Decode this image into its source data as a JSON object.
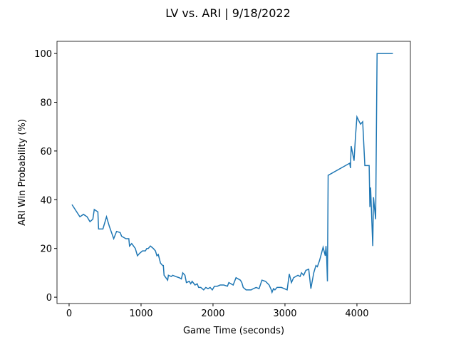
{
  "chart_data": {
    "type": "line",
    "title": "LV vs. ARI | 9/18/2022",
    "xlabel": "Game Time (seconds)",
    "ylabel": "ARI Win Probability (%)",
    "color": "#1f77b4",
    "x": [
      40,
      150,
      200,
      250,
      290,
      330,
      350,
      400,
      410,
      470,
      520,
      560,
      620,
      660,
      710,
      730,
      790,
      830,
      840,
      870,
      920,
      950,
      980,
      1020,
      1060,
      1080,
      1100,
      1130,
      1170,
      1200,
      1220,
      1240,
      1270,
      1300,
      1310,
      1320,
      1370,
      1380,
      1420,
      1440,
      1480,
      1530,
      1560,
      1580,
      1610,
      1630,
      1670,
      1690,
      1710,
      1750,
      1780,
      1800,
      1830,
      1870,
      1900,
      1930,
      1960,
      1990,
      2020,
      2060,
      2100,
      2150,
      2200,
      2220,
      2280,
      2320,
      2380,
      2400,
      2420,
      2460,
      2530,
      2560,
      2600,
      2640,
      2680,
      2730,
      2780,
      2810,
      2820,
      2840,
      2860,
      2890,
      2950,
      3030,
      3060,
      3090,
      3120,
      3180,
      3210,
      3230,
      3260,
      3290,
      3330,
      3360,
      3400,
      3430,
      3450,
      3480,
      3530,
      3560,
      3570,
      3580,
      3590,
      3600,
      3900,
      3910,
      3920,
      3960,
      3980,
      4000,
      4050,
      4080,
      4110,
      4170,
      4180,
      4190,
      4200,
      4220,
      4230,
      4260,
      4280,
      4500
    ],
    "values": [
      38,
      33,
      34,
      33,
      31,
      32,
      36,
      35,
      28,
      28,
      33,
      29,
      24,
      27,
      26.5,
      25,
      24,
      24,
      21,
      22,
      20,
      17,
      18,
      19,
      19,
      20,
      20,
      21,
      20,
      19,
      17,
      17.5,
      14,
      13,
      13,
      9,
      7,
      9,
      8.5,
      9,
      8.5,
      8,
      7.5,
      10,
      9,
      6,
      6.5,
      5.5,
      6.5,
      5,
      5.5,
      4,
      4,
      3,
      4,
      3.5,
      4,
      3,
      4.5,
      4.5,
      5,
      5,
      4.5,
      6,
      5,
      8,
      7,
      6,
      4,
      3,
      3,
      3.5,
      4,
      3.5,
      7,
      6.5,
      5,
      3,
      2,
      3.5,
      3,
      4,
      4,
      3,
      9.5,
      6,
      8,
      9,
      8.5,
      10,
      9,
      11,
      11.5,
      3.5,
      10,
      13,
      12.5,
      15,
      20.5,
      17,
      21,
      16,
      6.5,
      50,
      55,
      53,
      62,
      56,
      66,
      74,
      71,
      72,
      54,
      54,
      37,
      45,
      37,
      21,
      41,
      32,
      100,
      100
    ],
    "xlim": [
      -168,
      4743
    ],
    "ylim": [
      -2.6,
      105
    ],
    "xticks": [
      0,
      1000,
      2000,
      3000,
      4000
    ],
    "yticks": [
      0,
      20,
      40,
      60,
      80,
      100
    ]
  }
}
